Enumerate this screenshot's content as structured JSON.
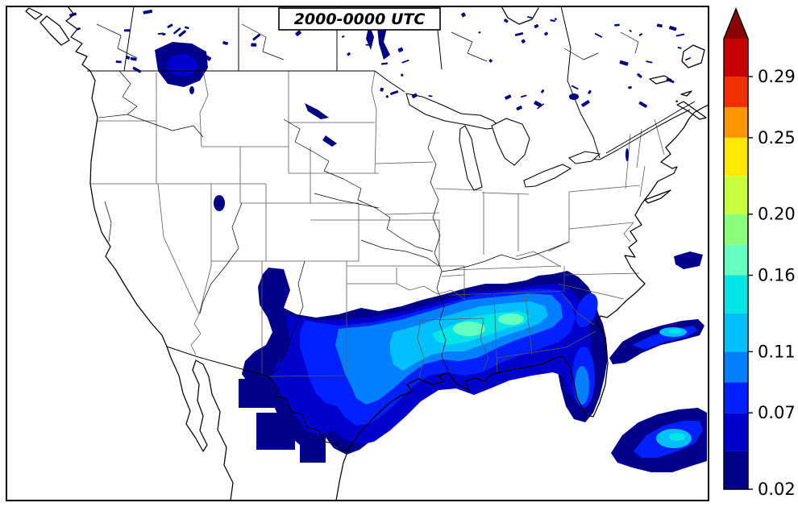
{
  "title": {
    "text": "2000-0000 UTC"
  },
  "colorbar": {
    "orientation": "vertical",
    "tick_labels": [
      "0.02",
      "0.07",
      "0.11",
      "0.16",
      "0.20",
      "0.25",
      "0.29"
    ],
    "tick_values": [
      0.02,
      0.07,
      0.11,
      0.16,
      0.2,
      0.25,
      0.29
    ],
    "vmin": 0.02,
    "vmax": 0.29,
    "levels": [
      0.02,
      0.045,
      0.07,
      0.09,
      0.11,
      0.135,
      0.16,
      0.18,
      0.2,
      0.225,
      0.25,
      0.27,
      0.29
    ],
    "colors": [
      "#00008B",
      "#0000CD",
      "#0020FF",
      "#0080FF",
      "#00BFFF",
      "#00E5E5",
      "#66FFC2",
      "#8AFF7A",
      "#C8FF3C",
      "#FFE800",
      "#FF9500",
      "#F03000"
    ],
    "cap_color": "#C80000",
    "over_arrow_color": "#8B0000"
  },
  "map": {
    "region": "North America (CONUS, southern Canada, northern Mexico)",
    "background": "#FFFFFF",
    "lake_color": "#000080",
    "state_line_color": "#5a5a5a"
  },
  "chart_data": {
    "type": "filled_contour_map",
    "title": "2000-0000 UTC",
    "colormap": "jet",
    "value_range": [
      0.02,
      0.29
    ],
    "colorbar_ticks": [
      0.02,
      0.07,
      0.11,
      0.16,
      0.2,
      0.25,
      0.29
    ],
    "contour_levels": [
      0.02,
      0.045,
      0.07,
      0.09,
      0.11,
      0.135,
      0.16,
      0.18,
      0.2,
      0.225,
      0.25,
      0.27,
      0.29
    ],
    "legend_position": "right",
    "regions": [
      {
        "area": "Gulf Coast band from central Texas across Louisiana, Mississippi and Alabama to Georgia and the Carolina coast",
        "peak_value": 0.16,
        "peak_location": "southeast Louisiana / southern Mississippi-Alabama"
      },
      {
        "area": "Florida peninsula",
        "peak_value": 0.09
      },
      {
        "area": "south Texas / Rio Grande (blocky detached patches)",
        "peak_value": 0.05
      },
      {
        "area": "western Atlantic off the Carolinas (Gulf Stream streak)",
        "peak_value": 0.13
      },
      {
        "area": "Cuba / Straits of Florida (bottom-right)",
        "peak_value": 0.13
      },
      {
        "area": "Montana-Idaho near the Canadian border",
        "peak_value": 0.05
      },
      {
        "area": "small open-Atlantic patch near right edge",
        "peak_value": 0.04
      }
    ]
  }
}
